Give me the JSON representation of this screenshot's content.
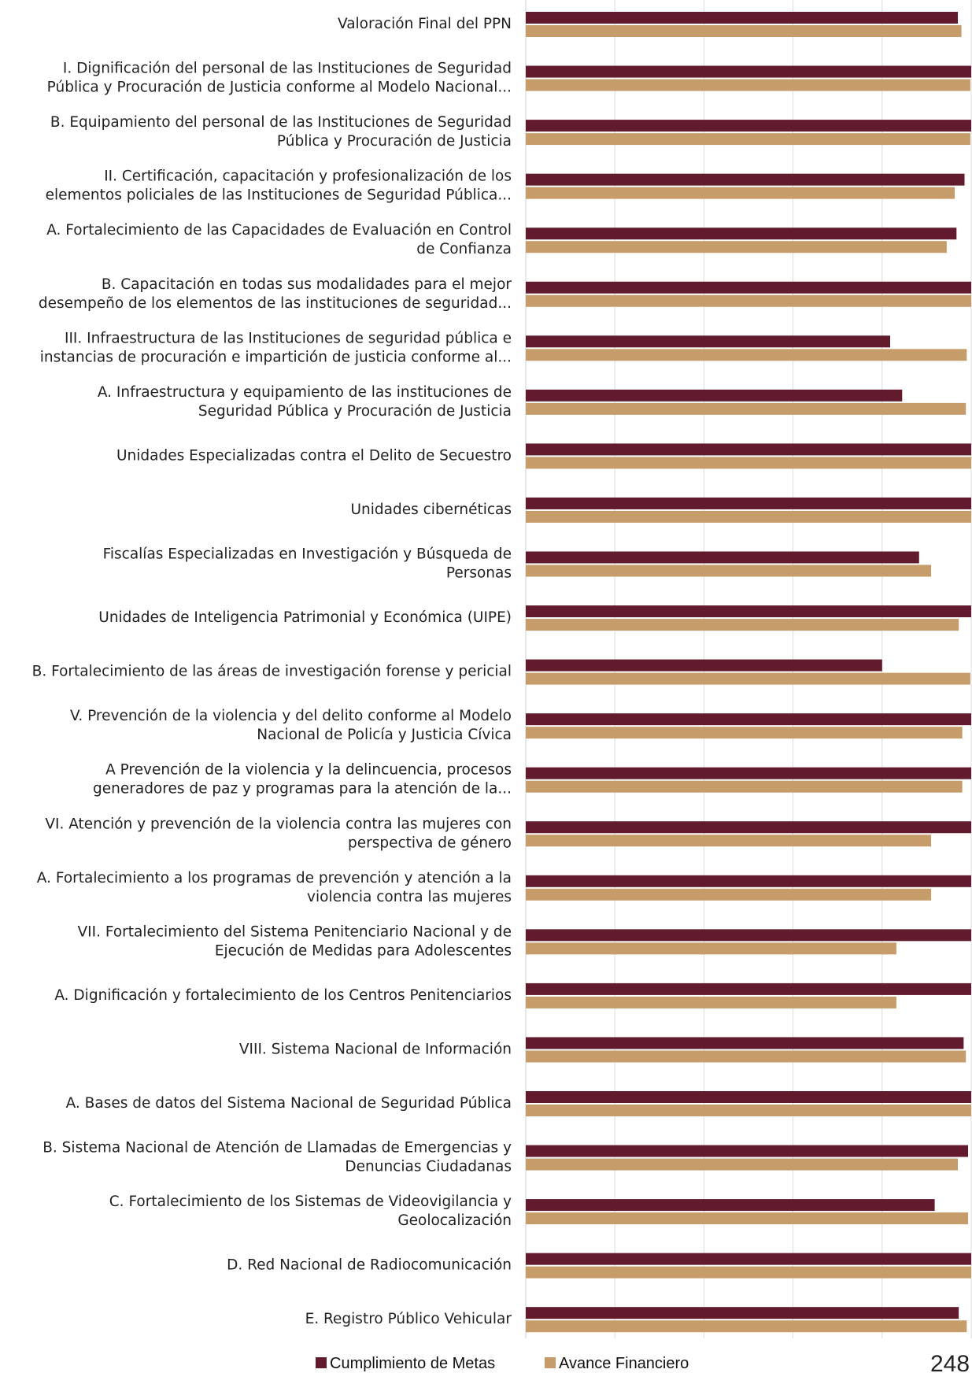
{
  "chart_data": {
    "type": "bar",
    "orientation": "horizontal",
    "title": "",
    "xlabel": "",
    "ylabel": "",
    "xlim": [
      0,
      1
    ],
    "grid": true,
    "legend_position": "bottom",
    "categories": [
      [
        "Valoración Final del PPN"
      ],
      [
        "I. Dignificación del personal de las Instituciones de Seguridad",
        "Pública y Procuración de Justicia conforme al Modelo Nacional..."
      ],
      [
        "B. Equipamiento del personal de las Instituciones de Seguridad",
        "Pública y Procuración de Justicia"
      ],
      [
        "II. Certificación, capacitación y profesionalización de los",
        "elementos policiales de las Instituciones de Seguridad Pública..."
      ],
      [
        "A. Fortalecimiento de las Capacidades de Evaluación en Control",
        "de Confianza"
      ],
      [
        "B. Capacitación en todas sus modalidades para el mejor",
        "desempeño de los elementos de las instituciones de seguridad..."
      ],
      [
        "III. Infraestructura de las Instituciones de seguridad pública e",
        "instancias de procuración e impartición de justicia conforme al..."
      ],
      [
        "A. Infraestructura y equipamiento de las instituciones de",
        "Seguridad Pública y Procuración de Justicia"
      ],
      [
        "Unidades Especializadas contra el Delito de Secuestro"
      ],
      [
        "Unidades cibernéticas"
      ],
      [
        "Fiscalías Especializadas en Investigación y Búsqueda de",
        "Personas"
      ],
      [
        "Unidades de Inteligencia Patrimonial y Económica (UIPE)"
      ],
      [
        "B. Fortalecimiento de las áreas de investigación forense y pericial"
      ],
      [
        "V. Prevención de la violencia y del delito conforme al Modelo",
        "Nacional de Policía y Justicia Cívica"
      ],
      [
        "A Prevención de la violencia y la delincuencia, procesos",
        "generadores de paz y programas para la atención de la..."
      ],
      [
        "VI. Atención y prevención de la violencia contra las mujeres con",
        "perspectiva de género"
      ],
      [
        "A. Fortalecimiento a los programas de prevención y atención a la",
        "violencia contra las mujeres"
      ],
      [
        "VII. Fortalecimiento del Sistema Penitenciario Nacional y de",
        "Ejecución de Medidas para Adolescentes"
      ],
      [
        "A. Dignificación y fortalecimiento de los Centros Penitenciarios"
      ],
      [
        "VIII. Sistema Nacional de Información"
      ],
      [
        "A. Bases de datos del Sistema Nacional de Seguridad Pública"
      ],
      [
        "B. Sistema Nacional de Atención de Llamadas de Emergencias y",
        "Denuncias Ciudadanas"
      ],
      [
        "C. Fortalecimiento de los Sistemas de Videovigilancia y",
        "Geolocalización"
      ],
      [
        "D. Red Nacional de Radiocomunicación"
      ],
      [
        "E. Registro Público Vehicular"
      ]
    ],
    "series": [
      {
        "name": "Cumplimiento de Metas",
        "color": "#621b2d",
        "values": [
          0.97,
          1.0,
          1.0,
          0.985,
          0.967,
          1.0,
          0.818,
          0.845,
          1.0,
          1.0,
          0.883,
          1.0,
          0.8,
          1.0,
          1.0,
          1.0,
          1.0,
          1.0,
          1.0,
          0.983,
          1.0,
          0.993,
          0.918,
          1.0,
          0.972
        ]
      },
      {
        "name": "Avance Financiero",
        "color": "#c69c6a",
        "values": [
          0.978,
          0.998,
          0.998,
          0.963,
          0.945,
          1.0,
          0.99,
          0.988,
          1.0,
          1.0,
          0.91,
          0.972,
          0.998,
          0.98,
          0.98,
          0.91,
          0.91,
          0.832,
          0.832,
          0.988,
          1.0,
          0.97,
          0.993,
          1.0,
          0.99
        ]
      }
    ]
  },
  "page_number": "248"
}
